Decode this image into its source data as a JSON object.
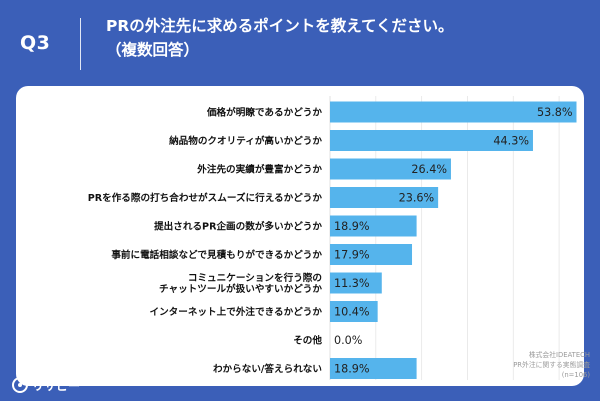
{
  "header": {
    "question_number": "Q3",
    "title_line1": "PRの外注先に求めるポイントを教えてください。",
    "title_line2": "（複数回答）"
  },
  "source": {
    "line1": "株式会社IDEATECH",
    "line2": "PR外注に関する実態調査",
    "line3": "(n=106)"
  },
  "logo": {
    "text": "リサピー"
  },
  "colors": {
    "background": "#3b5fb8",
    "bar": "#55b4ec",
    "panel": "#ffffff",
    "grid": "#e6e6e6"
  },
  "chart_data": {
    "type": "bar",
    "orientation": "horizontal",
    "categories": [
      [
        "価格が明瞭であるかどうか"
      ],
      [
        "納品物のクオリティが高いかどうか"
      ],
      [
        "外注先の実績が豊富かどうか"
      ],
      [
        "PRを作る際の打ち合わせがスムーズに行えるかどうか"
      ],
      [
        "提出されるPR企画の数が多いかどうか"
      ],
      [
        "事前に電話相談などで見積もりができるかどうか"
      ],
      [
        "コミュニケーションを行う際の",
        "チャットツールが扱いやすいかどうか"
      ],
      [
        "インターネット上で外注できるかどうか"
      ],
      [
        "その他"
      ],
      [
        "わからない/答えられない"
      ]
    ],
    "values": [
      53.8,
      44.3,
      26.4,
      23.6,
      18.9,
      17.9,
      11.3,
      10.4,
      0.0,
      18.9
    ],
    "value_labels": [
      "53.8%",
      "44.3%",
      "26.4%",
      "23.6%",
      "18.9%",
      "17.9%",
      "11.3%",
      "10.4%",
      "0.0%",
      "18.9%"
    ],
    "xlim": [
      0,
      55
    ],
    "grid": true
  }
}
